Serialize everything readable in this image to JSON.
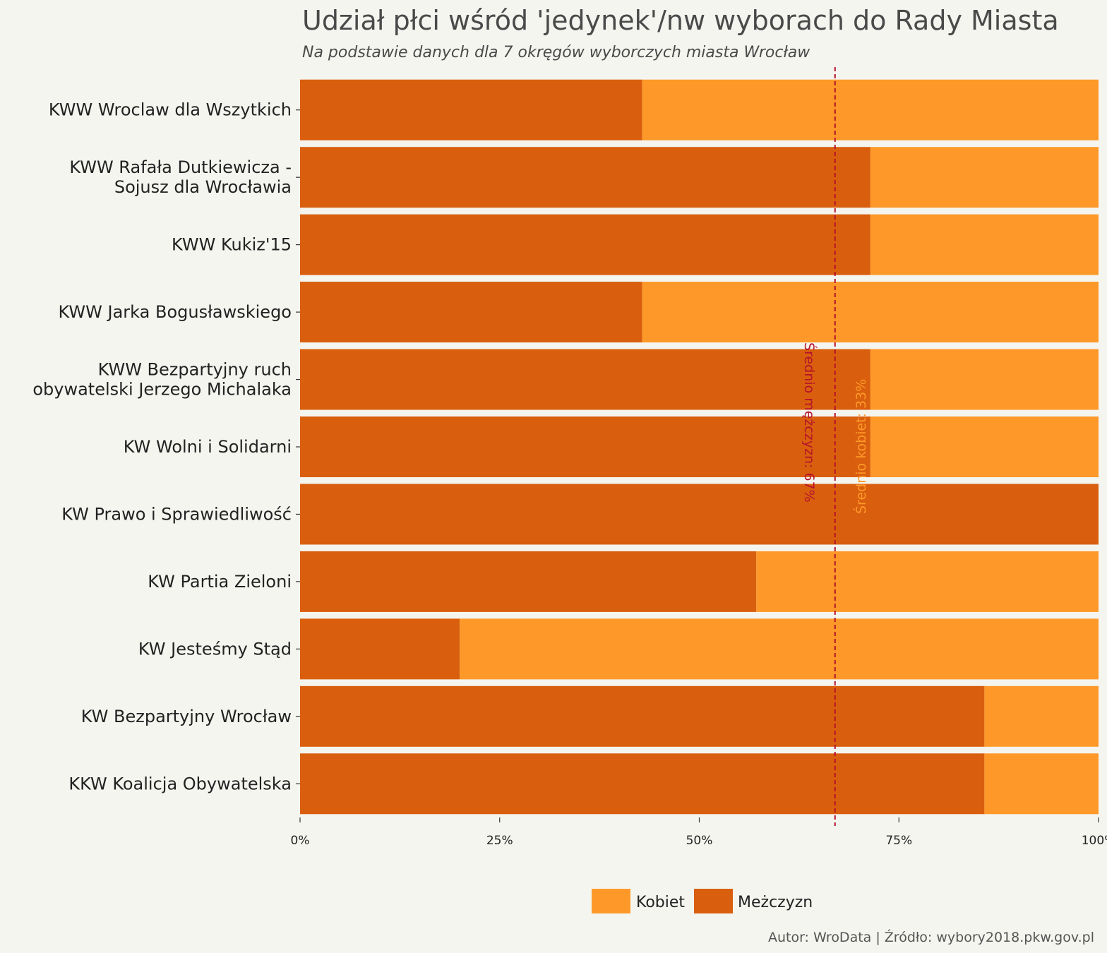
{
  "chart_data": {
    "type": "bar",
    "orientation": "horizontal",
    "stacked": true,
    "title": "Udział płci wśród 'jedynek'/nw wyborach do Rady Miasta",
    "subtitle": "Na podstawie danych dla 7 okręgów wyborczych miasta Wrocław",
    "caption": "Autor: WroData | Źródło: wybory2018.pkw.gov.pl",
    "categories": [
      [
        "KWW Wroclaw dla Wszytkich"
      ],
      [
        "KWW Rafała Dutkiewicza -",
        "Sojusz dla Wrocławia"
      ],
      [
        "KWW Kukiz'15"
      ],
      [
        "KWW Jarka Bogusławskiego"
      ],
      [
        "KWW Bezpartyjny ruch",
        "obywatelski Jerzego Michalaka"
      ],
      [
        "KW Wolni i Solidarni"
      ],
      [
        "KW Prawo i Sprawiedliwość"
      ],
      [
        "KW Partia Zieloni"
      ],
      [
        "KW Jesteśmy Stąd"
      ],
      [
        "KW Bezpartyjny Wrocław"
      ],
      [
        "KKW Koalicja Obywatelska"
      ]
    ],
    "series": [
      {
        "name": "Mężczyzn",
        "color": "#d95f0e",
        "values": [
          0.4286,
          0.7143,
          0.7143,
          0.4286,
          0.7143,
          0.7143,
          1.0,
          0.5714,
          0.2,
          0.8571,
          0.8571
        ]
      },
      {
        "name": "Kobiet",
        "color": "#fe9929",
        "values": [
          0.5714,
          0.2857,
          0.2857,
          0.5714,
          0.2857,
          0.2857,
          0.0,
          0.4286,
          0.8,
          0.1429,
          0.1429
        ]
      }
    ],
    "xlim": [
      0,
      1
    ],
    "x_ticks": [
      0,
      0.25,
      0.5,
      0.75,
      1.0
    ],
    "x_tick_labels": [
      "0%",
      "25%",
      "50%",
      "75%",
      "100%"
    ],
    "reference_line": {
      "value": 0.67,
      "color": "#b5122b",
      "style": "dashed"
    },
    "annotations": [
      {
        "text": "Średnio mężczyzn: 67%",
        "color": "#b5122b"
      },
      {
        "text": "Średnio kobiet: 33%",
        "color": "#fe9929"
      }
    ],
    "legend": {
      "position": "bottom",
      "entries": [
        {
          "name": "Kobiet",
          "color": "#fe9929"
        },
        {
          "name": "Meżczyzn",
          "color": "#d95f0e"
        }
      ]
    },
    "grid": false,
    "background": "#f5f5f0"
  }
}
